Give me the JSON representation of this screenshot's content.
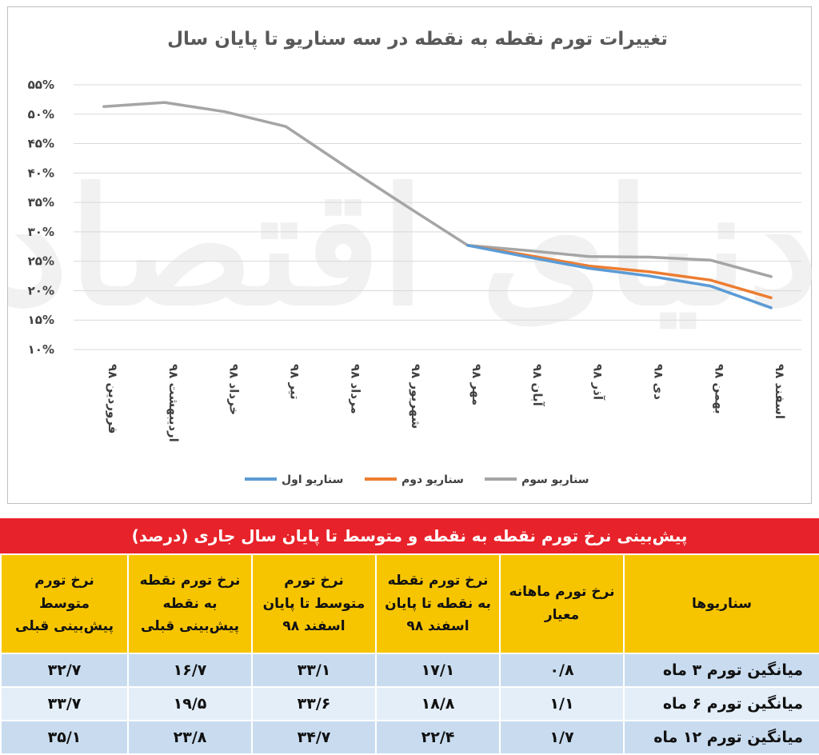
{
  "chart_data": {
    "type": "line",
    "title": "تغییرات تورم نقطه به نقطه در سه سناریو تا پایان سال",
    "categories": [
      "فروردین ۹۸",
      "اردیبهشت ۹۸",
      "خرداد ۹۸",
      "تیر ۹۸",
      "مرداد ۹۸",
      "شهریور ۹۸",
      "مهر ۹۸",
      "آبان ۹۸",
      "آذر ۹۸",
      "دی ۹۸",
      "بهمن ۹۸",
      "اسفند ۹۸"
    ],
    "yticks": [
      "۱۰%",
      "۱۵%",
      "۲۰%",
      "۲۵%",
      "۳۰%",
      "۳۵%",
      "۴۰%",
      "۴۵%",
      "۵۰%",
      "۵۵%"
    ],
    "ylim": [
      10,
      55
    ],
    "series": [
      {
        "name": "سناریو اول",
        "color": "#5b9bd5",
        "values": [
          null,
          null,
          null,
          null,
          null,
          null,
          27.7,
          25.7,
          23.8,
          22.5,
          20.8,
          17.1
        ]
      },
      {
        "name": "سناریو دوم",
        "color": "#ed7d31",
        "values": [
          null,
          null,
          null,
          null,
          null,
          null,
          27.7,
          26.0,
          24.2,
          23.2,
          21.8,
          18.8
        ]
      },
      {
        "name": "سناریو سوم",
        "color": "#a5a5a5",
        "values": [
          51.3,
          52.0,
          50.4,
          47.9,
          41.0,
          34.3,
          27.7,
          26.8,
          25.8,
          25.7,
          25.2,
          22.4
        ]
      }
    ]
  },
  "watermark": "دنیای اقتصاد",
  "table": {
    "title": "پیش‌بینی نرخ تورم نقطه به نقطه و متوسط تا پایان سال جاری (درصد)",
    "headers": [
      "سناریوها",
      "نرخ تورم ماهانه معیار",
      "نرخ تورم نقطه به نقطه تا پایان اسفند ۹۸",
      "نرخ تورم متوسط تا پایان اسفند ۹۸",
      "نرخ تورم نقطه به نقطه پیش‌بینی قبلی",
      "نرخ تورم متوسط پیش‌بینی قبلی"
    ],
    "rows": [
      [
        "میانگین تورم ۳ ماه",
        "۰/۸",
        "۱۷/۱",
        "۳۳/۱",
        "۱۶/۷",
        "۳۲/۷"
      ],
      [
        "میانگین تورم ۶ ماه",
        "۱/۱",
        "۱۸/۸",
        "۳۳/۶",
        "۱۹/۵",
        "۳۳/۷"
      ],
      [
        "میانگین تورم ۱۲ ماه",
        "۱/۷",
        "۲۲/۴",
        "۳۴/۷",
        "۲۳/۸",
        "۳۵/۱"
      ]
    ]
  }
}
